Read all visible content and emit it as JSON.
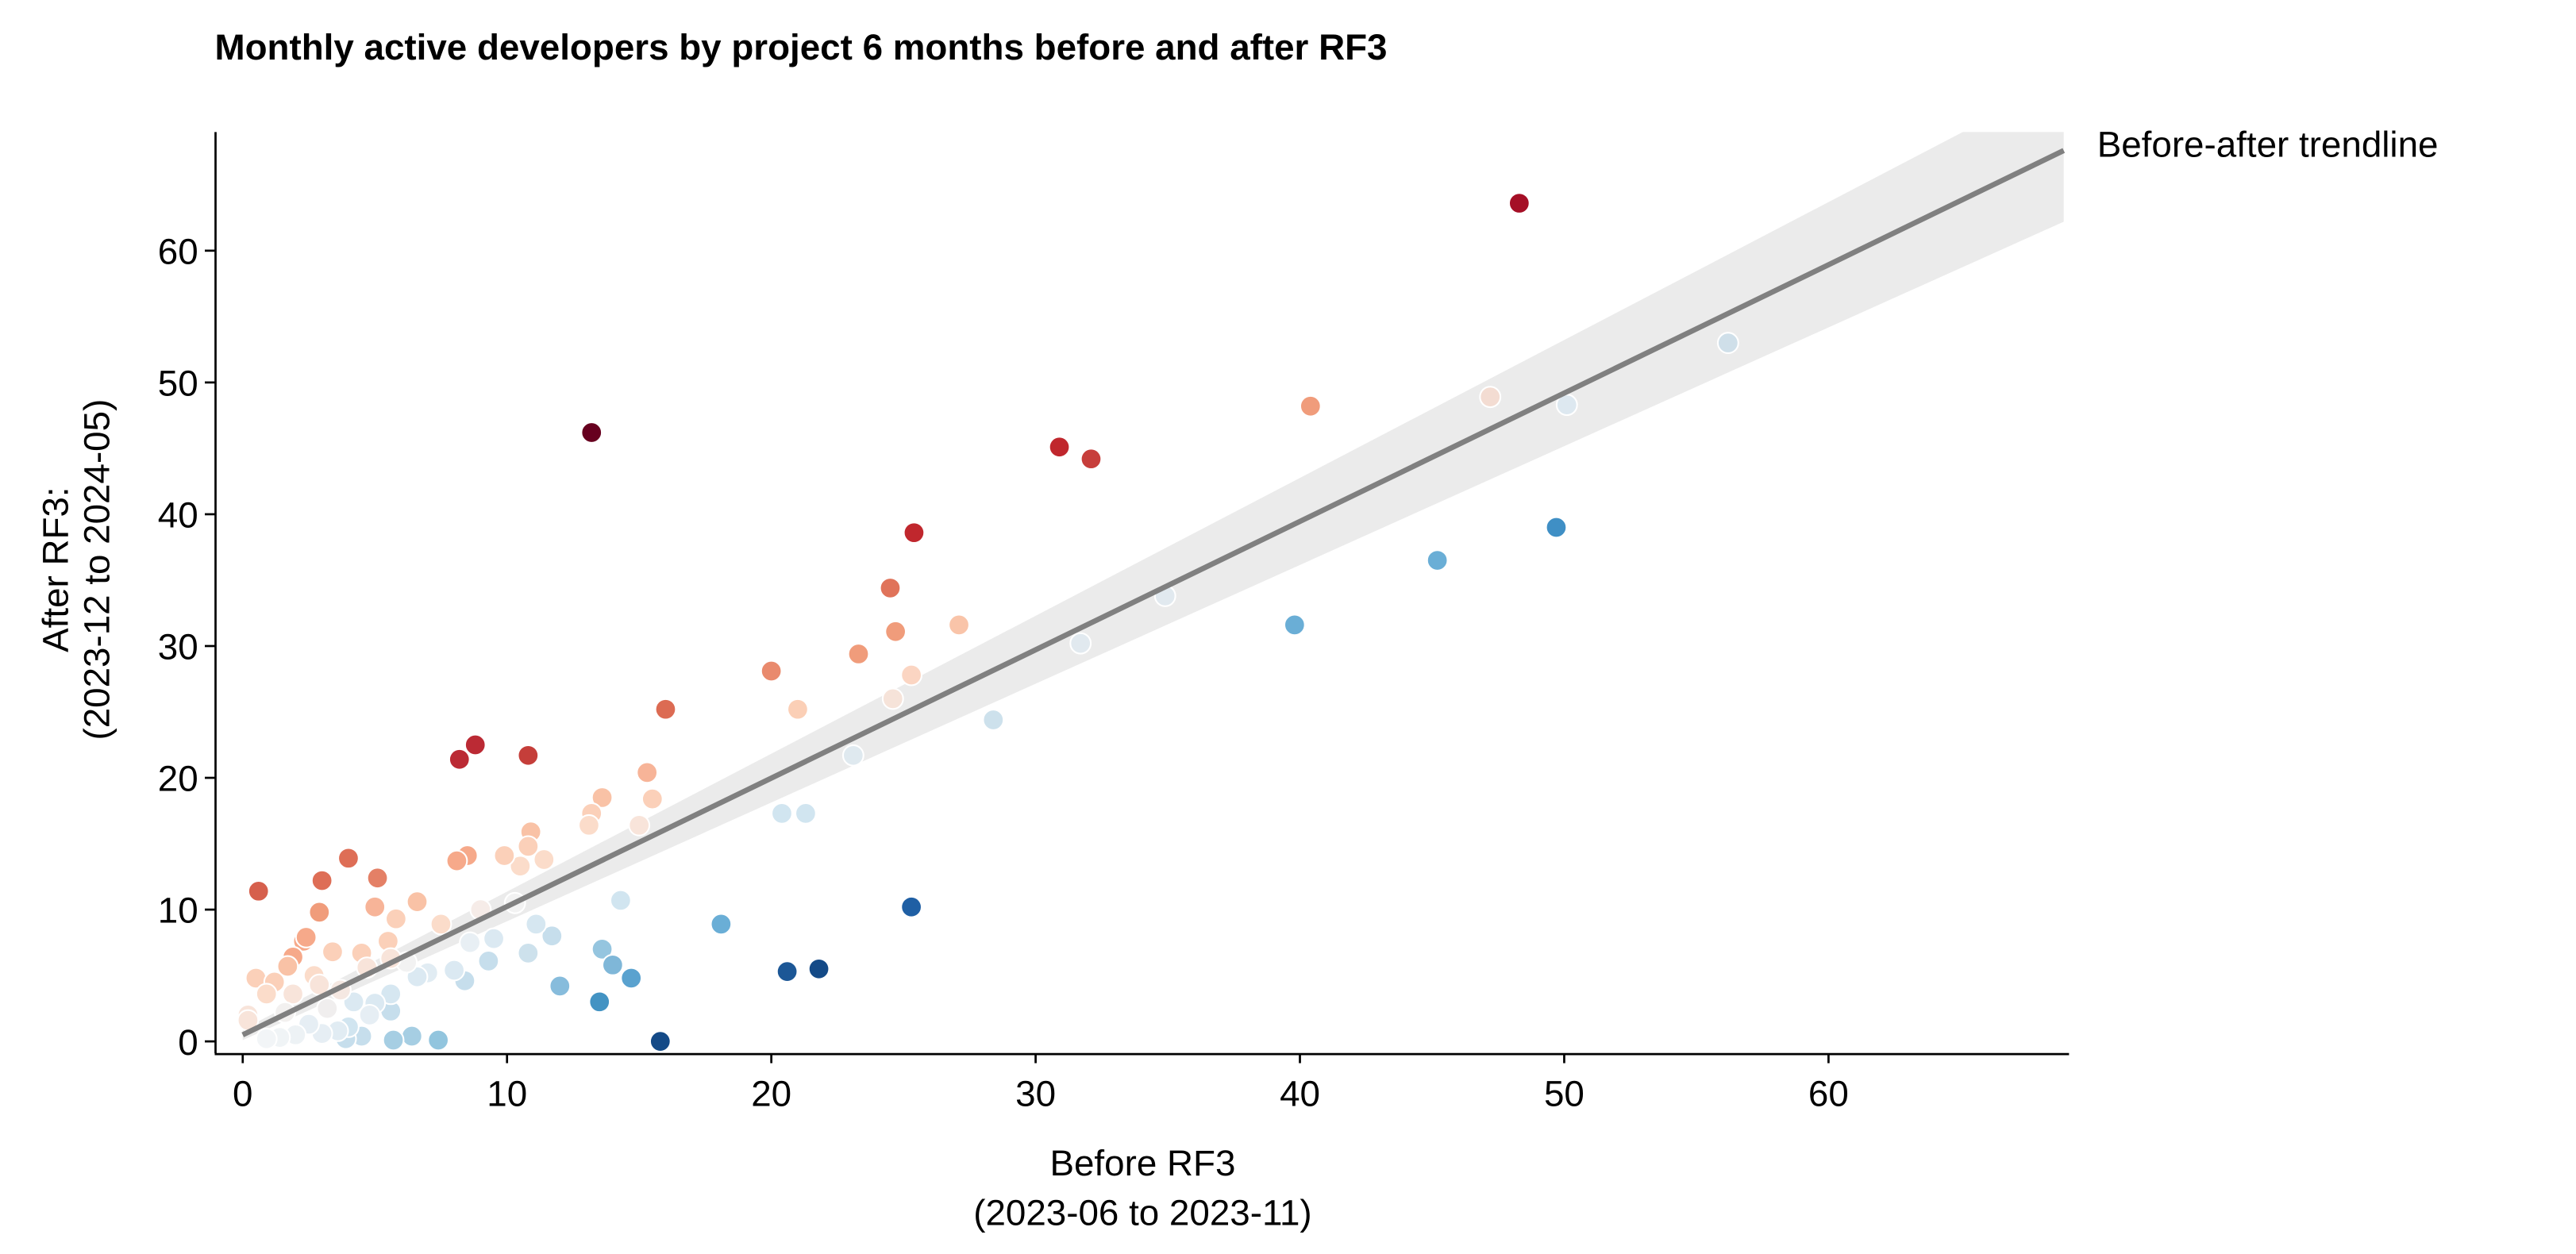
{
  "chart_data": {
    "type": "scatter",
    "title": "Monthly active developers by project 6 months before and after RF3",
    "xlabel": [
      "Before RF3",
      "(2023-06 to 2023-11)"
    ],
    "ylabel": [
      "After RF3:",
      "(2023-12 to 2024-05)"
    ],
    "xlim": [
      -1.06,
      69.1
    ],
    "ylim": [
      -0.9,
      69.0
    ],
    "xticks": [
      0,
      10,
      20,
      30,
      40,
      50,
      60
    ],
    "yticks": [
      0,
      10,
      20,
      30,
      40,
      50,
      60
    ],
    "grid": false,
    "colormap": "red-blue diverging (red = above trend, blue = below)",
    "trendline": {
      "label": "Before-after trendline",
      "color": "#808080",
      "band_color": "#ebebeb",
      "x": [
        0,
        68.9
      ],
      "y": [
        0.5,
        67.6
      ],
      "band_upper": [
        0.9,
        73.0
      ],
      "band_lower": [
        0.1,
        62.2
      ]
    },
    "points": [
      [
        48.3,
        63.6,
        "#a50f26"
      ],
      [
        13.2,
        46.2,
        "#67001f"
      ],
      [
        30.9,
        45.1,
        "#c0272d"
      ],
      [
        32.1,
        44.2,
        "#c73e3b"
      ],
      [
        25.4,
        38.6,
        "#c0272d"
      ],
      [
        24.5,
        34.4,
        "#e0735a"
      ],
      [
        24.7,
        31.1,
        "#f09c7b"
      ],
      [
        23.3,
        29.4,
        "#f09c7b"
      ],
      [
        27.1,
        31.6,
        "#f9c4a9"
      ],
      [
        20.0,
        28.1,
        "#e98a6d"
      ],
      [
        25.3,
        27.8,
        "#fbd5c2"
      ],
      [
        24.6,
        26.0,
        "#f6e3d9"
      ],
      [
        21.0,
        25.2,
        "#fbcfb6"
      ],
      [
        16.0,
        25.2,
        "#dc6b53"
      ],
      [
        8.8,
        22.5,
        "#bb2a34"
      ],
      [
        8.2,
        21.4,
        "#bb2a34"
      ],
      [
        10.8,
        21.7,
        "#c53e3a"
      ],
      [
        15.3,
        20.4,
        "#f7b498"
      ],
      [
        13.6,
        18.5,
        "#f9c2a6"
      ],
      [
        15.5,
        18.4,
        "#fbd0b9"
      ],
      [
        13.2,
        17.3,
        "#fbd0b9"
      ],
      [
        13.1,
        16.4,
        "#fbdcca"
      ],
      [
        15.0,
        16.4,
        "#f8e4da"
      ],
      [
        10.9,
        15.9,
        "#f9c2a6"
      ],
      [
        10.8,
        14.8,
        "#fbd0b9"
      ],
      [
        11.4,
        13.8,
        "#fbdcca"
      ],
      [
        10.5,
        13.3,
        "#fbdcca"
      ],
      [
        8.5,
        14.1,
        "#f6a98a"
      ],
      [
        8.1,
        13.7,
        "#f6a98a"
      ],
      [
        9.9,
        14.1,
        "#fbd0b9"
      ],
      [
        4.0,
        13.9,
        "#de6e56"
      ],
      [
        5.1,
        12.4,
        "#e48066"
      ],
      [
        3.0,
        12.2,
        "#de6e56"
      ],
      [
        0.6,
        11.4,
        "#d6604d"
      ],
      [
        2.9,
        9.8,
        "#f09c7b"
      ],
      [
        5.0,
        10.2,
        "#f7b498"
      ],
      [
        6.6,
        10.6,
        "#f9c2a6"
      ],
      [
        5.8,
        9.3,
        "#fbd0b9"
      ],
      [
        7.5,
        8.9,
        "#fbdcca"
      ],
      [
        2.3,
        7.6,
        "#f6a98a"
      ],
      [
        2.4,
        7.9,
        "#f6a98a"
      ],
      [
        1.9,
        6.4,
        "#f6a98a"
      ],
      [
        1.7,
        5.7,
        "#f9c2a6"
      ],
      [
        3.4,
        6.8,
        "#fbd0b9"
      ],
      [
        4.5,
        6.7,
        "#fbd0b9"
      ],
      [
        5.5,
        7.6,
        "#fbd0b9"
      ],
      [
        0.5,
        4.8,
        "#fbd0b9"
      ],
      [
        1.2,
        4.5,
        "#fbd0b9"
      ],
      [
        2.7,
        5.0,
        "#fbdcca"
      ],
      [
        0.9,
        3.6,
        "#fbdcca"
      ],
      [
        1.9,
        3.6,
        "#f8e4da"
      ],
      [
        0.2,
        2.0,
        "#f8e4da"
      ],
      [
        0.2,
        1.6,
        "#f8e4da"
      ],
      [
        56.2,
        53.0,
        "#cfdfe9"
      ],
      [
        47.2,
        48.9,
        "#f3dcd2"
      ],
      [
        40.4,
        48.2,
        "#f09c7b"
      ],
      [
        50.1,
        48.3,
        "#dde8f0"
      ],
      [
        49.7,
        39.0,
        "#3f8fc5"
      ],
      [
        45.2,
        36.5,
        "#6aaed6"
      ],
      [
        39.8,
        31.6,
        "#6aaed6"
      ],
      [
        34.9,
        33.8,
        "#e1e9ef"
      ],
      [
        31.7,
        30.2,
        "#e1e9ef"
      ],
      [
        28.4,
        24.4,
        "#cde1ec"
      ],
      [
        23.1,
        21.7,
        "#dfe9ef"
      ],
      [
        20.4,
        17.3,
        "#d1e5f0"
      ],
      [
        21.3,
        17.3,
        "#d1e5f0"
      ],
      [
        25.3,
        10.2,
        "#1f5fa4"
      ],
      [
        21.8,
        5.5,
        "#144a87"
      ],
      [
        20.6,
        5.3,
        "#1c5796"
      ],
      [
        15.8,
        0.0,
        "#144a87"
      ],
      [
        18.1,
        8.9,
        "#6aaed6"
      ],
      [
        14.3,
        10.7,
        "#d1e5f0"
      ],
      [
        13.6,
        7.0,
        "#95c5df"
      ],
      [
        14.0,
        5.8,
        "#7fb7d8"
      ],
      [
        14.7,
        4.8,
        "#5aa2cf"
      ],
      [
        13.5,
        3.0,
        "#4393c3"
      ],
      [
        12.0,
        4.2,
        "#87bcdc"
      ],
      [
        11.7,
        8.0,
        "#c6deec"
      ],
      [
        11.1,
        8.9,
        "#d6e7f1"
      ],
      [
        10.8,
        6.7,
        "#cde1ec"
      ],
      [
        9.3,
        6.1,
        "#c6deec"
      ],
      [
        9.5,
        7.8,
        "#dbe9f2"
      ],
      [
        8.4,
        4.6,
        "#c6deec"
      ],
      [
        8.0,
        5.4,
        "#dbe9f2"
      ],
      [
        7.0,
        5.2,
        "#e1ecf3"
      ],
      [
        6.6,
        4.9,
        "#dbe9f2"
      ],
      [
        7.4,
        0.1,
        "#92c5de"
      ],
      [
        6.4,
        0.4,
        "#a6cee3"
      ],
      [
        5.7,
        0.1,
        "#a6cee3"
      ],
      [
        5.6,
        2.3,
        "#c6deec"
      ],
      [
        5.6,
        3.6,
        "#d6e7f1"
      ],
      [
        5.0,
        2.9,
        "#dbe9f2"
      ],
      [
        4.5,
        0.4,
        "#c6deec"
      ],
      [
        3.9,
        0.2,
        "#c6deec"
      ],
      [
        4.0,
        1.1,
        "#d1e5f0"
      ],
      [
        4.2,
        3.0,
        "#dbe9f2"
      ],
      [
        3.6,
        0.8,
        "#e1ecf3"
      ],
      [
        3.0,
        0.6,
        "#e6eef4"
      ],
      [
        2.5,
        1.3,
        "#e6eef4"
      ],
      [
        2.0,
        0.5,
        "#edf2f5"
      ],
      [
        1.4,
        0.3,
        "#f0f4f6"
      ],
      [
        0.9,
        0.2,
        "#f2f5f7"
      ],
      [
        1.6,
        2.2,
        "#f2f0ef"
      ],
      [
        3.2,
        2.5,
        "#f0eeee"
      ],
      [
        4.8,
        2.0,
        "#e6eef4"
      ],
      [
        6.2,
        6.0,
        "#f2f2f2"
      ],
      [
        9.0,
        10.0,
        "#f6ece8"
      ],
      [
        10.3,
        10.5,
        "#f2f2f2"
      ],
      [
        4.7,
        5.6,
        "#f8e4da"
      ],
      [
        5.6,
        6.3,
        "#f8e4da"
      ],
      [
        2.9,
        4.3,
        "#f8e4da"
      ],
      [
        3.7,
        3.9,
        "#f5e8e2"
      ],
      [
        8.6,
        7.5,
        "#e8eff4"
      ]
    ]
  }
}
